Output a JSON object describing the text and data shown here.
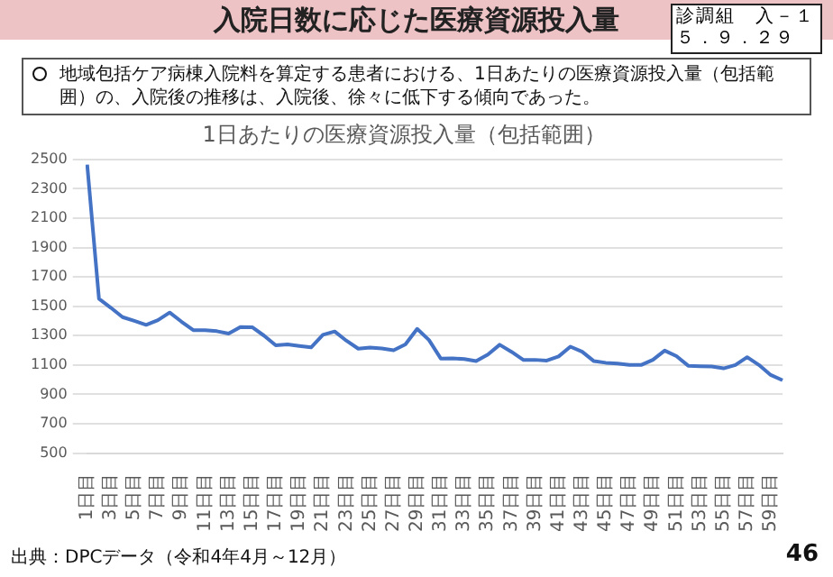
{
  "chart_data": {
    "type": "line",
    "title": "入院日数に応じた医療資源投入量",
    "subtitle": "1日あたりの医療資源投入量（包括範囲）",
    "annotations": [
      "地域包括ケア病棟入院料を算定する患者における、1日あたりの医療資源投入量（包括範囲）の、入院後の推移は、入院後、徐々に低下する傾向であった。",
      "診調組　入－１",
      "５．９．２９",
      "出典：DPCデータ（令和4年4月～12月）",
      "46"
    ],
    "categories": [
      "1日目",
      null,
      "3日目",
      null,
      "5日目",
      null,
      "7日目",
      null,
      "9日目",
      null,
      "11日目",
      null,
      "13日目",
      null,
      "15日目",
      null,
      "17日目",
      null,
      "19日目",
      null,
      "21日目",
      null,
      "23日目",
      null,
      "25日目",
      null,
      "27日目",
      null,
      "29日目",
      null,
      "31日目",
      null,
      "33日目",
      null,
      "35日目",
      null,
      "37日目",
      null,
      "39日目",
      null,
      "41日目",
      null,
      "43日目",
      null,
      "45日目",
      null,
      "47日目",
      null,
      "49日目",
      null,
      "51日目",
      null,
      "53日目",
      null,
      "55日目",
      null,
      "57日目",
      null,
      "59日目",
      null
    ],
    "series": [
      {
        "color": "#4472c4",
        "values": [
          2464,
          1551,
          1490,
          1426,
          1400,
          1373,
          1405,
          1457,
          1395,
          1337,
          1337,
          1330,
          1314,
          1359,
          1357,
          1300,
          1234,
          1240,
          1230,
          1220,
          1305,
          1328,
          1265,
          1211,
          1218,
          1212,
          1200,
          1240,
          1346,
          1270,
          1144,
          1145,
          1140,
          1126,
          1171,
          1238,
          1190,
          1135,
          1135,
          1130,
          1158,
          1225,
          1190,
          1126,
          1115,
          1110,
          1100,
          1100,
          1135,
          1198,
          1160,
          1095,
          1092,
          1090,
          1077,
          1100,
          1153,
          1100,
          1032,
          996
        ]
      }
    ],
    "ylim": [
      500,
      2500
    ],
    "yticks": [
      500,
      700,
      900,
      1100,
      1300,
      1500,
      1700,
      1900,
      2100,
      2300,
      2500
    ],
    "grid": "y",
    "legend": false,
    "marker": "none",
    "line_style": "solid"
  }
}
